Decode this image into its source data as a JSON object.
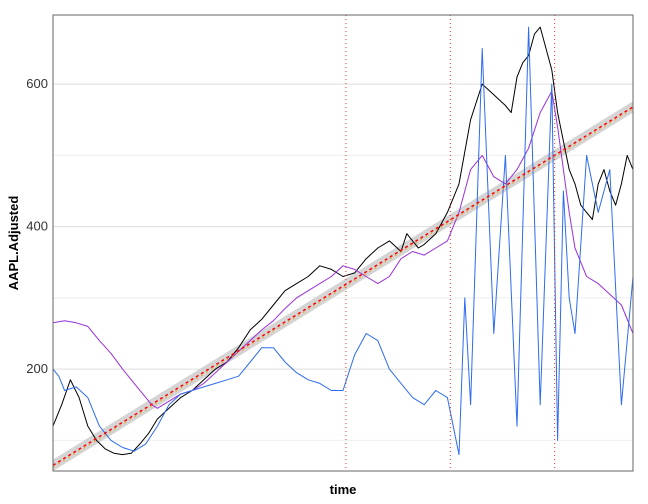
{
  "chart_data": {
    "type": "line",
    "xlabel": "time",
    "ylabel": "AAPL.Adjusted",
    "ylim": [
      57,
      697
    ],
    "yticks": [
      200,
      400,
      600
    ],
    "grid": true,
    "legend": "none",
    "x_index_range": [
      0,
      1000
    ],
    "series": [
      {
        "color": "#000000",
        "x": [
          0,
          15,
          30,
          45,
          60,
          75,
          90,
          105,
          120,
          135,
          150,
          165,
          180,
          200,
          220,
          240,
          260,
          280,
          300,
          320,
          340,
          360,
          380,
          400,
          420,
          440,
          460,
          480,
          500,
          520,
          540,
          560,
          580,
          600,
          610,
          620,
          630,
          640,
          660,
          680,
          700,
          720,
          740,
          760,
          780,
          790,
          800,
          810,
          820,
          830,
          840,
          850,
          860,
          870,
          880,
          890,
          900,
          910,
          920,
          930,
          940,
          950,
          960,
          970,
          980,
          990,
          1000
        ],
        "values": [
          120,
          150,
          185,
          160,
          120,
          100,
          88,
          82,
          80,
          82,
          95,
          110,
          130,
          145,
          160,
          170,
          185,
          200,
          210,
          230,
          255,
          270,
          290,
          310,
          320,
          330,
          345,
          340,
          330,
          335,
          355,
          370,
          380,
          365,
          390,
          380,
          370,
          375,
          390,
          420,
          460,
          550,
          600,
          585,
          570,
          560,
          610,
          630,
          640,
          670,
          680,
          650,
          620,
          560,
          520,
          480,
          460,
          430,
          420,
          410,
          460,
          480,
          450,
          430,
          460,
          500,
          480
        ]
      },
      {
        "color": "#9b30d9",
        "x": [
          0,
          20,
          40,
          60,
          80,
          100,
          120,
          140,
          160,
          170,
          180,
          200,
          220,
          240,
          260,
          280,
          300,
          320,
          340,
          360,
          380,
          400,
          420,
          440,
          460,
          480,
          500,
          520,
          540,
          560,
          580,
          600,
          620,
          640,
          660,
          680,
          700,
          720,
          740,
          760,
          780,
          800,
          820,
          840,
          860,
          870,
          880,
          890,
          900,
          920,
          940,
          960,
          980,
          1000
        ],
        "values": [
          265,
          268,
          265,
          260,
          240,
          222,
          200,
          180,
          160,
          150,
          145,
          155,
          165,
          170,
          180,
          195,
          210,
          225,
          240,
          255,
          268,
          285,
          300,
          310,
          320,
          330,
          345,
          340,
          330,
          320,
          330,
          355,
          365,
          360,
          370,
          380,
          420,
          480,
          500,
          470,
          460,
          480,
          510,
          560,
          590,
          540,
          480,
          420,
          370,
          330,
          320,
          305,
          290,
          250
        ]
      },
      {
        "color": "#2e6bf0",
        "x": [
          0,
          10,
          20,
          40,
          60,
          80,
          100,
          120,
          140,
          160,
          180,
          200,
          220,
          240,
          260,
          280,
          300,
          320,
          340,
          360,
          380,
          400,
          420,
          440,
          460,
          480,
          500,
          520,
          540,
          560,
          580,
          600,
          620,
          640,
          660,
          680,
          690,
          700,
          710,
          720,
          740,
          760,
          780,
          800,
          820,
          840,
          860,
          870,
          880,
          890,
          900,
          920,
          940,
          960,
          980,
          1000
        ],
        "values": [
          200,
          190,
          170,
          175,
          160,
          120,
          100,
          90,
          85,
          95,
          120,
          150,
          165,
          170,
          175,
          180,
          185,
          190,
          210,
          230,
          230,
          210,
          195,
          185,
          180,
          170,
          170,
          220,
          250,
          240,
          200,
          180,
          160,
          150,
          170,
          160,
          120,
          80,
          300,
          150,
          650,
          250,
          500,
          120,
          680,
          150,
          600,
          100,
          450,
          300,
          250,
          500,
          420,
          480,
          150,
          330
        ]
      }
    ],
    "trend_line": {
      "style": "red-dotted",
      "x": [
        0,
        1000
      ],
      "y": [
        65,
        568
      ]
    },
    "confidence_band": {
      "x": [
        0,
        1000
      ],
      "lower": [
        57,
        560
      ],
      "upper": [
        73,
        576
      ]
    },
    "vlines": [
      505,
      685,
      865
    ]
  }
}
